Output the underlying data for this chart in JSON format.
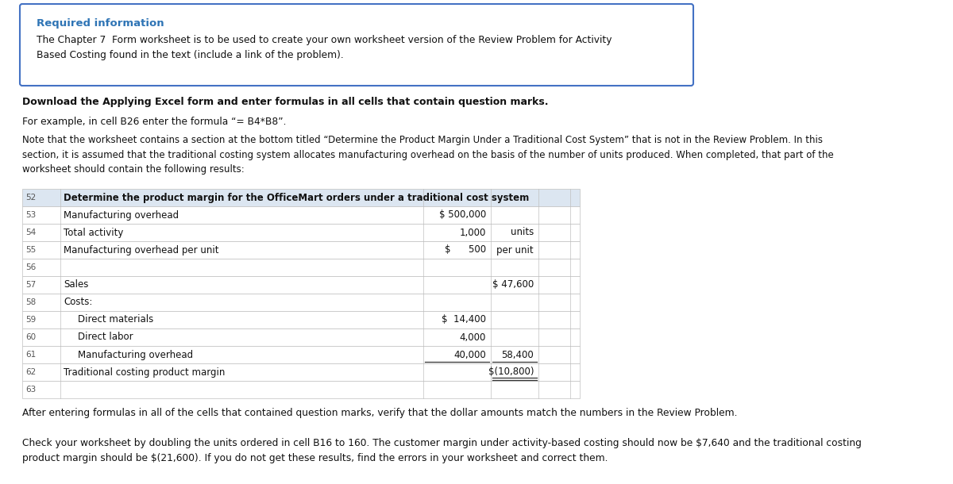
{
  "box_title": "Required information",
  "box_text": "The Chapter 7  Form worksheet is to be used to create your own worksheet version of the Review Problem for Activity\nBased Costing found in the text (include a link of the problem).",
  "bold_line": "Download the Applying Excel form and enter formulas in all cells that contain question marks.",
  "formula_line": "For example, in cell B26 enter the formula “= B4*B8”.",
  "note_text": "Note that the worksheet contains a section at the bottom titled “Determine the Product Margin Under a Traditional Cost System” that is not in the Review Problem. In this\nsection, it is assumed that the traditional costing system allocates manufacturing overhead on the basis of the number of units produced. When completed, that part of the\nworksheet should contain the following results:",
  "table_header_col1": "Determine the product margin for the OfficeMart orders under a traditional cost system",
  "rows": [
    {
      "num": "52",
      "label": "Determine the product margin for the OfficeMart orders under a traditional cost system",
      "indent": false,
      "col2": "",
      "col3": "",
      "col4": "",
      "header": true
    },
    {
      "num": "53",
      "label": "Manufacturing overhead",
      "indent": false,
      "col2": "$ 500,000",
      "col3": "",
      "col4": "",
      "header": false
    },
    {
      "num": "54",
      "label": "Total activity",
      "indent": false,
      "col2": "1,000",
      "col3": "units",
      "col4": "",
      "header": false
    },
    {
      "num": "55",
      "label": "Manufacturing overhead per unit",
      "indent": false,
      "col2": "$      500",
      "col3": "per unit",
      "col4": "",
      "header": false
    },
    {
      "num": "56",
      "label": "",
      "indent": false,
      "col2": "",
      "col3": "",
      "col4": "",
      "header": false
    },
    {
      "num": "57",
      "label": "Sales",
      "indent": false,
      "col2": "",
      "col3": "$ 47,600",
      "col4": "",
      "header": false
    },
    {
      "num": "58",
      "label": "Costs:",
      "indent": false,
      "col2": "",
      "col3": "",
      "col4": "",
      "header": false
    },
    {
      "num": "59",
      "label": "Direct materials",
      "indent": true,
      "col2": "$  14,400",
      "col3": "",
      "col4": "",
      "header": false
    },
    {
      "num": "60",
      "label": "Direct labor",
      "indent": true,
      "col2": "4,000",
      "col3": "",
      "col4": "",
      "header": false
    },
    {
      "num": "61",
      "label": "Manufacturing overhead",
      "indent": true,
      "col2": "40,000",
      "col3": "58,400",
      "col4": "",
      "header": false,
      "underline_col2": true,
      "underline_col3": true
    },
    {
      "num": "62",
      "label": "Traditional costing product margin",
      "indent": false,
      "col2": "",
      "col3": "$(10,800)",
      "col4": "",
      "header": false,
      "double_underline_col3": true
    },
    {
      "num": "63",
      "label": "",
      "indent": false,
      "col2": "",
      "col3": "",
      "col4": "",
      "header": false
    }
  ],
  "after_text": "After entering formulas in all of the cells that contained question marks, verify that the dollar amounts match the numbers in the Review Problem.",
  "check_text": "Check your worksheet by doubling the units ordered in cell B16 to 160. The customer margin under activity-based costing should now be $7,640 and the traditional costing\nproduct margin should be $(21,600). If you do not get these results, find the errors in your worksheet and correct them.",
  "bg_color": "#ffffff",
  "box_border_color": "#4472c4",
  "box_title_color": "#2e74b5",
  "table_header_bg": "#dce6f1",
  "table_row_bg": "#ffffff",
  "table_border_color": "#c0c0c0"
}
